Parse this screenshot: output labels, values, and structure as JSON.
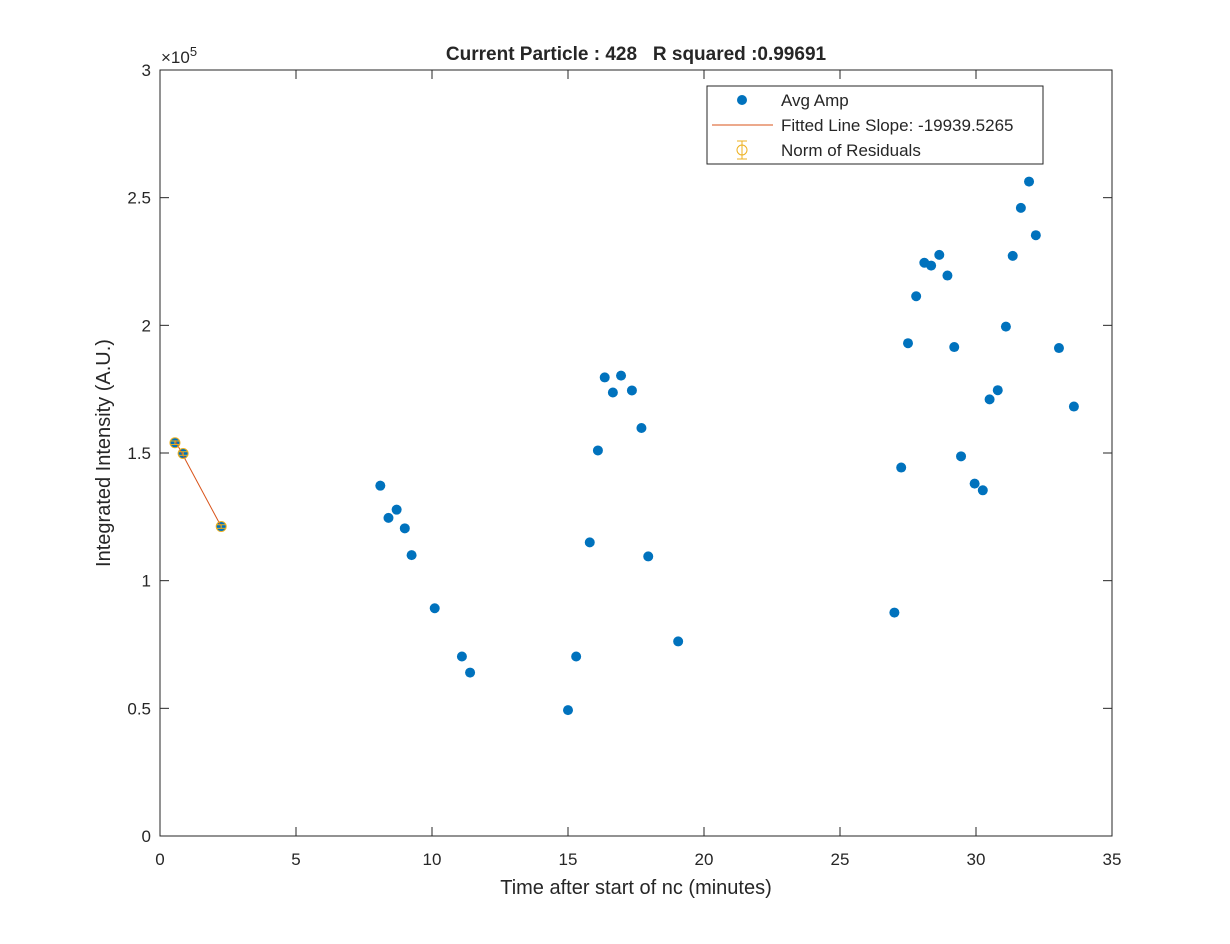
{
  "chart_data": {
    "type": "scatter",
    "title": "Current Particle : 428   R squared :0.99691",
    "xlabel": "Time after start of nc (minutes)",
    "ylabel": "Integrated Intensity (A.U.)",
    "xlim": [
      0,
      35
    ],
    "ylim": [
      0,
      300000
    ],
    "x_ticks": [
      0,
      5,
      10,
      15,
      20,
      25,
      30,
      35
    ],
    "y_ticks": [
      0,
      50000,
      100000,
      150000,
      200000,
      250000,
      300000
    ],
    "x_tick_labels": [
      "0",
      "5",
      "10",
      "15",
      "20",
      "25",
      "30",
      "35"
    ],
    "y_tick_labels": [
      "0",
      "0.5",
      "1",
      "1.5",
      "2",
      "2.5",
      "3"
    ],
    "y_exponent_base": "×10",
    "y_exponent_power": "5",
    "grid": false,
    "legend_position": "top-right",
    "legend": [
      "Avg Amp",
      "Fitted Line Slope: -19939.5265",
      "Norm of Residuals"
    ],
    "colors": {
      "avg_amp": "#0072BD",
      "fitted_line": "#D95319",
      "residuals": "#EDB120"
    },
    "series": [
      {
        "name": "Avg Amp",
        "type": "scatter",
        "x": [
          0.55,
          0.85,
          2.25,
          8.1,
          8.4,
          8.7,
          9.0,
          9.25,
          10.1,
          11.1,
          11.4,
          15.0,
          15.3,
          15.8,
          16.1,
          16.35,
          16.65,
          16.95,
          17.35,
          17.7,
          17.95,
          19.05,
          27.0,
          27.25,
          27.5,
          27.8,
          28.1,
          28.35,
          28.65,
          28.95,
          29.2,
          29.45,
          29.95,
          30.25,
          30.5,
          30.8,
          31.1,
          31.35,
          31.65,
          31.95,
          32.2,
          33.05,
          33.6
        ],
        "y": [
          154000,
          149800,
          121200,
          137200,
          124600,
          127800,
          120500,
          110000,
          89200,
          70300,
          64000,
          49300,
          70300,
          115000,
          151000,
          179600,
          173700,
          180300,
          174500,
          159800,
          109500,
          76200,
          87500,
          144300,
          193000,
          211400,
          224500,
          223400,
          227600,
          219500,
          191500,
          148700,
          138000,
          135400,
          171000,
          174600,
          199500,
          227200,
          246000,
          256300,
          235300,
          191100,
          168200
        ]
      },
      {
        "name": "Fitted Line Slope: -19939.5265",
        "type": "line",
        "x": [
          0.55,
          2.25
        ],
        "y": [
          155000,
          121200
        ]
      },
      {
        "name": "Norm of Residuals",
        "type": "errorbar",
        "x": [
          0.55,
          0.85,
          2.25
        ],
        "y": [
          154000,
          149800,
          121200
        ],
        "error": [
          700,
          700,
          700
        ]
      }
    ]
  }
}
